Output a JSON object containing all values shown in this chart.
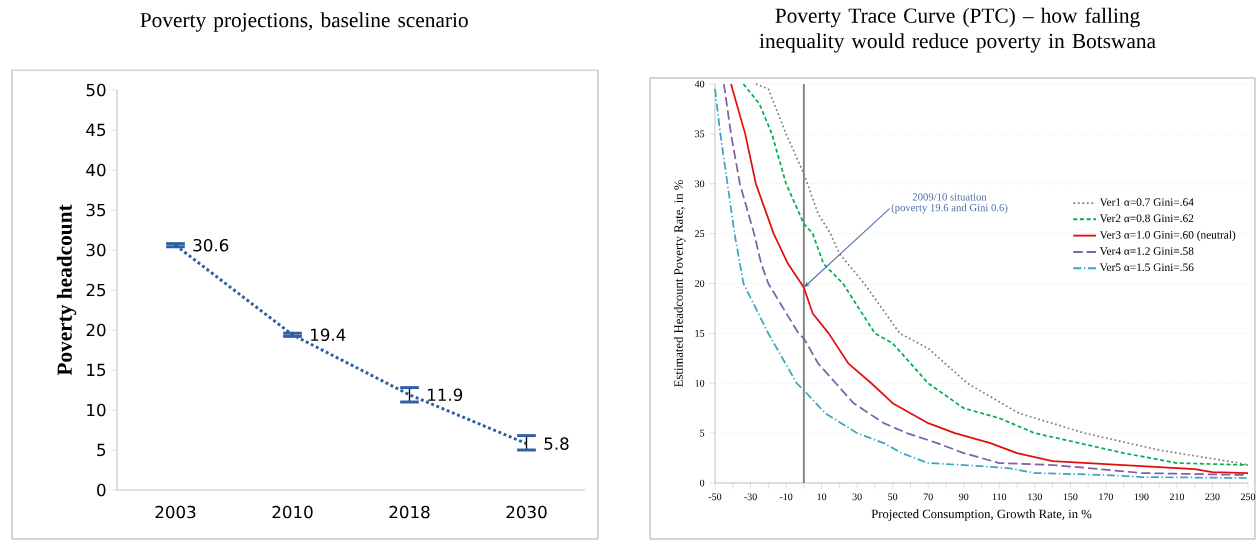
{
  "chart_data": [
    {
      "type": "line",
      "title": "Poverty projections, baseline scenario",
      "ylabel": "Poverty headcount",
      "categories": [
        "2003",
        "2010",
        "2018",
        "2030"
      ],
      "values": [
        30.6,
        19.4,
        11.9,
        5.8
      ],
      "color": "#2e5fa3",
      "errors": [
        [
          30.4,
          30.8
        ],
        [
          19.2,
          19.6
        ],
        [
          11.0,
          12.8
        ],
        [
          5.0,
          6.8
        ]
      ],
      "ylim": [
        0,
        50
      ],
      "yticks": [
        0,
        5,
        10,
        15,
        20,
        25,
        30,
        35,
        40,
        45,
        50
      ],
      "line_style": "dotted",
      "data_labels": true
    },
    {
      "type": "line",
      "title": "Poverty Trace Curve (PTC) – how falling inequality would reduce poverty in Botswana",
      "xlabel": "Projected Consumption, Growth Rate, in %",
      "ylabel": "Estimated Headcount Poverty Rate, in %",
      "series": [
        {
          "name": "Ver1 α=0.7  Gini=.64",
          "color": "#808080",
          "line_style": "dotted",
          "x": [
            -27,
            -20,
            -10,
            0,
            8,
            15,
            20,
            34,
            54,
            70,
            92,
            121,
            158,
            200,
            245,
            250
          ],
          "values": [
            40,
            39.5,
            35,
            31,
            27,
            25,
            23,
            20,
            15,
            13.5,
            10,
            7,
            5,
            3.3,
            2,
            1.8
          ]
        },
        {
          "name": "Ver2 α=0.8  Gini=.62",
          "color": "#00b050",
          "line_style": "dashed",
          "x": [
            -34,
            -25,
            -18,
            -10,
            0,
            5,
            11,
            22,
            40,
            50,
            60,
            70,
            90,
            110,
            130,
            155,
            180,
            210,
            250
          ],
          "values": [
            40,
            38,
            35,
            30,
            26,
            25,
            22,
            20,
            15,
            14,
            12,
            10,
            7.5,
            6.5,
            5,
            4,
            3,
            2,
            1.8
          ]
        },
        {
          "name": "Ver3 α=1.0  Gini=.60 (neutral)",
          "color": "#e01010",
          "line_style": "solid",
          "x": [
            -41,
            -33,
            -27,
            -17,
            -9,
            0,
            5,
            14,
            25,
            38,
            50,
            70,
            85,
            105,
            120,
            140,
            160,
            190,
            220,
            230,
            250
          ],
          "values": [
            40,
            35,
            30,
            25,
            22,
            19.6,
            17,
            15,
            12,
            10,
            8,
            6,
            5,
            4,
            3,
            2.2,
            2,
            1.7,
            1.4,
            1.1,
            1
          ]
        },
        {
          "name": "Ver4 α=1.2  Gini=.58",
          "color": "#7f5fa8",
          "line_style": "longdash",
          "x": [
            -45,
            -41,
            -36,
            -28,
            -24,
            -20,
            -3,
            0,
            8,
            18,
            28,
            45,
            58,
            75,
            90,
            110,
            140,
            160,
            190,
            250
          ],
          "values": [
            40,
            35,
            30,
            25,
            22,
            20,
            15,
            14.5,
            12,
            10,
            8,
            6,
            5,
            4,
            3,
            2,
            1.8,
            1.5,
            1,
            0.8
          ]
        },
        {
          "name": "Ver5 α=1.5  Gini=.56",
          "color": "#3aa6c0",
          "line_style": "dashdot",
          "x": [
            -50,
            -47,
            -43,
            -39,
            -34,
            -20,
            -4,
            0,
            12,
            30,
            45,
            55,
            70,
            90,
            115,
            130,
            170,
            190,
            250
          ],
          "values": [
            39.5,
            35,
            30,
            25,
            20,
            15,
            10,
            9.3,
            7,
            5,
            4,
            3,
            2,
            1.8,
            1.5,
            1,
            0.8,
            0.6,
            0.5
          ]
        }
      ],
      "xlim": [
        -50,
        250
      ],
      "xticks": [
        -50,
        {
          "value": -40,
          "label": null
        },
        -30,
        {
          "value": -20,
          "label": null
        },
        -10,
        {
          "value": 0,
          "label": null
        },
        10,
        {
          "value": 20,
          "label": null
        },
        30,
        {
          "value": 40,
          "label": null
        },
        50,
        {
          "value": 60,
          "label": null
        },
        70,
        {
          "value": 80,
          "label": null
        },
        90,
        {
          "value": 100,
          "label": null
        },
        110,
        {
          "value": 120,
          "label": null
        },
        130,
        {
          "value": 140,
          "label": null
        },
        150,
        {
          "value": 160,
          "label": null
        },
        170,
        {
          "value": 180,
          "label": null
        },
        190,
        {
          "value": 200,
          "label": null
        },
        210,
        {
          "value": 220,
          "label": null
        },
        230,
        {
          "value": 240,
          "label": null
        },
        250
      ],
      "ylim": [
        0,
        40
      ],
      "yticks": [
        0,
        5,
        10,
        15,
        20,
        25,
        30,
        35,
        40
      ],
      "grid": "y",
      "legend": "right",
      "ref_lines": [
        {
          "axis": "x",
          "value": 0,
          "color": "#808080"
        }
      ],
      "annotations": [
        "2009/10 situation",
        {
          "text": "(poverty 19.6 and Gini 0.6)",
          "x": 0,
          "y": 19.6
        }
      ]
    }
  ]
}
